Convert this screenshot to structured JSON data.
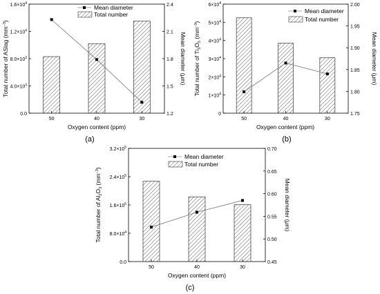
{
  "chart_data": [
    {
      "type": "bar",
      "panel_label": "(a)",
      "categories": [
        "50",
        "40",
        "30"
      ],
      "xlabel": "Oxygen content (ppm)",
      "series": [
        {
          "name": "Total number",
          "type": "bar",
          "axis": "left",
          "values": [
            8300,
            10200,
            13500
          ]
        },
        {
          "name": "Mean diameter",
          "type": "line",
          "axis": "right",
          "values": [
            2.23,
            1.79,
            1.32
          ]
        }
      ],
      "ylabel_left": {
        "pre": "Total number of ASlag (mm",
        "sup": "−3",
        "post": ")"
      },
      "ylabel_right": "Mean diameter (μm)",
      "ylim_left": [
        0,
        16000
      ],
      "ylim_right": [
        1.2,
        2.4
      ],
      "left_ticks": [
        0,
        4000,
        8000,
        12000,
        16000
      ],
      "left_tick_labels": [
        {
          "m": "0.0",
          "e": ""
        },
        {
          "m": "4.0×10",
          "e": "3"
        },
        {
          "m": "8.0×10",
          "e": "3"
        },
        {
          "m": "1.2×10",
          "e": "4"
        },
        {
          "m": "1.6×10",
          "e": "4"
        }
      ],
      "right_ticks": [
        1.2,
        1.5,
        1.8,
        2.1,
        2.4
      ],
      "right_tick_labels": [
        "1.2",
        "1.5",
        "1.8",
        "2.1",
        "2.4"
      ],
      "legend": "top"
    },
    {
      "type": "bar",
      "panel_label": "(b)",
      "categories": [
        "50",
        "40",
        "30"
      ],
      "xlabel": "Oxygen content (ppm)",
      "series": [
        {
          "name": "Total number",
          "type": "bar",
          "axis": "left",
          "values": [
            52500,
            38500,
            30500
          ]
        },
        {
          "name": "Mean diameter",
          "type": "line",
          "axis": "right",
          "values": [
            1.799,
            1.865,
            1.84
          ]
        }
      ],
      "ylabel_left": {
        "pre": "Total number of Ti",
        "sub1": "3",
        "mid": "O",
        "sub2": "5",
        "post2": " (mm",
        "sup": "−3",
        "post": ")"
      },
      "ylabel_right": "Mean diameter (μm)",
      "ylim_left": [
        0,
        60000
      ],
      "ylim_right": [
        1.75,
        2.0
      ],
      "left_ticks": [
        0,
        10000,
        20000,
        30000,
        40000,
        50000,
        60000
      ],
      "left_tick_labels": [
        {
          "m": "0",
          "e": ""
        },
        {
          "m": "1×10",
          "e": "4"
        },
        {
          "m": "2×10",
          "e": "4"
        },
        {
          "m": "3×10",
          "e": "4"
        },
        {
          "m": "4×10",
          "e": "4"
        },
        {
          "m": "5×10",
          "e": "4"
        },
        {
          "m": "6×10",
          "e": "4"
        }
      ],
      "right_ticks": [
        1.75,
        1.8,
        1.85,
        1.9,
        1.95,
        2.0
      ],
      "right_tick_labels": [
        "1.75",
        "1.80",
        "1.85",
        "1.90",
        "1.95",
        "2.00"
      ],
      "legend": "top-right"
    },
    {
      "type": "bar",
      "panel_label": "(c)",
      "categories": [
        "50",
        "40",
        "30"
      ],
      "xlabel": "Oxygen content (ppm)",
      "series": [
        {
          "name": "Total number",
          "type": "bar",
          "axis": "left",
          "values": [
            227000,
            183000,
            161000
          ]
        },
        {
          "name": "Mean diameter",
          "type": "line",
          "axis": "right",
          "values": [
            0.526,
            0.559,
            0.585
          ]
        }
      ],
      "ylabel_left": {
        "pre": "Total number of Al",
        "sub1": "2",
        "mid": "O",
        "sub2": "3",
        "post2": " (mm",
        "sup": "−3",
        "post": ")"
      },
      "ylabel_right": "Mean diameter (μm)",
      "ylim_left": [
        0,
        320000
      ],
      "ylim_right": [
        0.45,
        0.7
      ],
      "left_ticks": [
        0,
        80000,
        160000,
        240000,
        320000
      ],
      "left_tick_labels": [
        {
          "m": "0.0",
          "e": ""
        },
        {
          "m": "8.0×10",
          "e": "4"
        },
        {
          "m": "1.6×10",
          "e": "5"
        },
        {
          "m": "2.4×10",
          "e": "5"
        },
        {
          "m": "3.2×10",
          "e": "5"
        }
      ],
      "right_ticks": [
        0.45,
        0.5,
        0.55,
        0.6,
        0.65,
        0.7
      ],
      "right_tick_labels": [
        "0.45",
        "0.50",
        "0.55",
        "0.60",
        "0.65",
        "0.70"
      ],
      "legend": "top-left"
    }
  ]
}
